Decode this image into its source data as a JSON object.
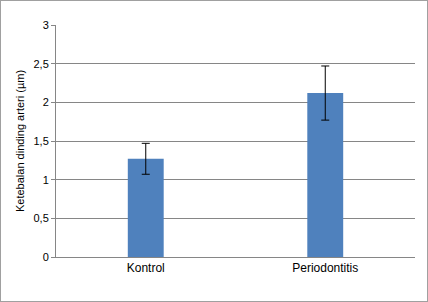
{
  "chart_data": {
    "type": "bar",
    "y_label": "Ketebalan dinding arteri (µm)",
    "categories": [
      "Kontrol",
      "Periodontitis"
    ],
    "values": [
      1.27,
      2.12
    ],
    "errors": [
      0.2,
      0.35
    ],
    "color": "#4f81bd",
    "ylim": [
      0,
      3
    ],
    "yticks": [
      0,
      {
        "value": 0.5,
        "label": "0,5"
      },
      1,
      {
        "value": 1.5,
        "label": "1,5"
      },
      2,
      {
        "value": 2.5,
        "label": "2,5"
      },
      3
    ],
    "grid": true
  }
}
